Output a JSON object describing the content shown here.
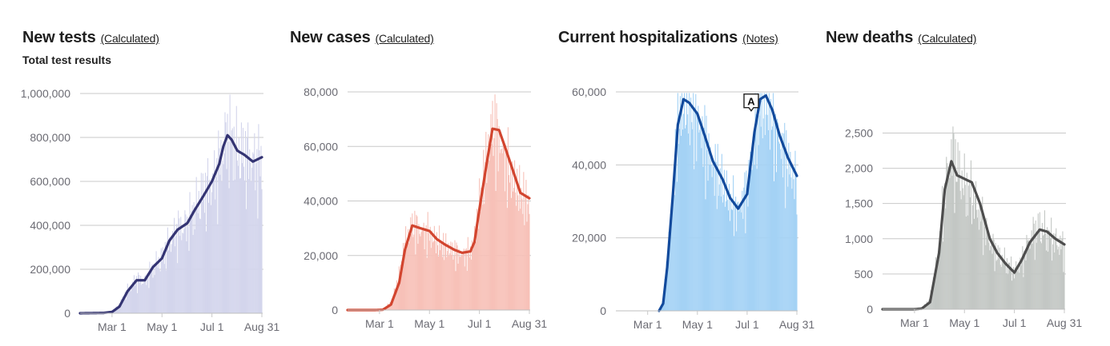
{
  "chart_data": [
    {
      "type": "bar",
      "title": "New tests",
      "title_link": "(Calculated)",
      "subtitle": "Total test results",
      "ylim": [
        0,
        1000000
      ],
      "yticks": [
        {
          "value": 0,
          "label": "0"
        },
        {
          "value": 200000,
          "label": "200,000"
        },
        {
          "value": 400000,
          "label": "400,000"
        },
        {
          "value": 600000,
          "label": "600,000"
        },
        {
          "value": 800000,
          "label": "800,000"
        },
        {
          "value": 1000000,
          "label": "1,000,000"
        }
      ],
      "xlim": [
        "2020-01-22",
        "2020-08-31"
      ],
      "xticks": [
        {
          "value": "2020-03-01",
          "label": "Mar 1"
        },
        {
          "value": "2020-05-01",
          "label": "May 1"
        },
        {
          "value": "2020-07-01",
          "label": "Jul 1"
        },
        {
          "value": "2020-08-31",
          "label": "Aug 31"
        }
      ],
      "grid": true,
      "colors": {
        "bars": "#d3d5ec",
        "line": "#343473"
      },
      "series": [
        {
          "kind": "daily-bars",
          "x": [
            "2020-01-22",
            "2020-02-20",
            "2020-03-01",
            "2020-03-10",
            "2020-03-20",
            "2020-03-31",
            "2020-04-10",
            "2020-04-20",
            "2020-05-01",
            "2020-05-10",
            "2020-05-20",
            "2020-06-01",
            "2020-06-10",
            "2020-06-20",
            "2020-07-01",
            "2020-07-10",
            "2020-07-15",
            "2020-07-20",
            "2020-07-25",
            "2020-08-01",
            "2020-08-10",
            "2020-08-20",
            "2020-08-31"
          ],
          "values": [
            0,
            2000,
            8000,
            40000,
            110000,
            160000,
            150000,
            215000,
            255000,
            340000,
            390000,
            420000,
            490000,
            560000,
            610000,
            700000,
            760000,
            860000,
            820000,
            760000,
            740000,
            720000,
            700000
          ]
        },
        {
          "kind": "7-day-average",
          "x": [
            "2020-01-22",
            "2020-02-20",
            "2020-03-01",
            "2020-03-10",
            "2020-03-20",
            "2020-03-31",
            "2020-04-10",
            "2020-04-20",
            "2020-05-01",
            "2020-05-10",
            "2020-05-20",
            "2020-06-01",
            "2020-06-10",
            "2020-06-20",
            "2020-07-01",
            "2020-07-10",
            "2020-07-15",
            "2020-07-20",
            "2020-07-25",
            "2020-08-01",
            "2020-08-10",
            "2020-08-20",
            "2020-08-31"
          ],
          "values": [
            0,
            1500,
            6000,
            30000,
            100000,
            150000,
            150000,
            210000,
            250000,
            330000,
            380000,
            410000,
            470000,
            530000,
            600000,
            680000,
            760000,
            810000,
            790000,
            740000,
            720000,
            690000,
            710000
          ]
        }
      ]
    },
    {
      "type": "bar",
      "title": "New cases",
      "title_link": "(Calculated)",
      "ylim": [
        0,
        80000
      ],
      "yticks": [
        {
          "value": 0,
          "label": "0"
        },
        {
          "value": 20000,
          "label": "20,000"
        },
        {
          "value": 40000,
          "label": "40,000"
        },
        {
          "value": 60000,
          "label": "60,000"
        },
        {
          "value": 80000,
          "label": "80,000"
        }
      ],
      "xlim": [
        "2020-01-22",
        "2020-08-31"
      ],
      "xticks": [
        {
          "value": "2020-03-01",
          "label": "Mar 1"
        },
        {
          "value": "2020-05-01",
          "label": "May 1"
        },
        {
          "value": "2020-07-01",
          "label": "Jul 1"
        },
        {
          "value": "2020-08-31",
          "label": "Aug 31"
        }
      ],
      "grid": true,
      "colors": {
        "bars": "#f7c1b8",
        "line": "#d2452f"
      },
      "series": [
        {
          "kind": "daily-bars",
          "x": [
            "2020-01-22",
            "2020-02-25",
            "2020-03-05",
            "2020-03-15",
            "2020-03-25",
            "2020-04-01",
            "2020-04-10",
            "2020-04-20",
            "2020-05-01",
            "2020-05-10",
            "2020-05-20",
            "2020-06-01",
            "2020-06-10",
            "2020-06-20",
            "2020-06-25",
            "2020-07-01",
            "2020-07-10",
            "2020-07-17",
            "2020-07-25",
            "2020-08-01",
            "2020-08-10",
            "2020-08-20",
            "2020-08-31"
          ],
          "values": [
            0,
            0,
            300,
            3000,
            13000,
            25000,
            32000,
            30000,
            29000,
            26000,
            24000,
            22000,
            21000,
            22000,
            27000,
            40000,
            58000,
            70000,
            64000,
            58000,
            50000,
            44000,
            40000
          ]
        },
        {
          "kind": "7-day-average",
          "x": [
            "2020-01-22",
            "2020-02-25",
            "2020-03-05",
            "2020-03-15",
            "2020-03-25",
            "2020-04-01",
            "2020-04-10",
            "2020-04-20",
            "2020-05-01",
            "2020-05-10",
            "2020-05-20",
            "2020-06-01",
            "2020-06-10",
            "2020-06-20",
            "2020-06-25",
            "2020-07-01",
            "2020-07-10",
            "2020-07-17",
            "2020-07-25",
            "2020-08-01",
            "2020-08-10",
            "2020-08-20",
            "2020-08-31"
          ],
          "values": [
            0,
            0,
            100,
            2000,
            10000,
            22000,
            31000,
            30000,
            29000,
            26000,
            24000,
            22000,
            21000,
            21500,
            25000,
            37000,
            54000,
            66500,
            66000,
            60000,
            52000,
            43000,
            41000
          ]
        }
      ]
    },
    {
      "type": "bar",
      "title": "Current hospitalizations",
      "title_link": "(Notes)",
      "ylim": [
        0,
        60000
      ],
      "yticks": [
        {
          "value": 0,
          "label": "0"
        },
        {
          "value": 20000,
          "label": "20,000"
        },
        {
          "value": 40000,
          "label": "40,000"
        },
        {
          "value": 60000,
          "label": "60,000"
        }
      ],
      "xlim": [
        "2020-01-22",
        "2020-08-31"
      ],
      "xticks": [
        {
          "value": "2020-03-01",
          "label": "Mar 1"
        },
        {
          "value": "2020-05-01",
          "label": "May 1"
        },
        {
          "value": "2020-07-01",
          "label": "Jul 1"
        },
        {
          "value": "2020-08-31",
          "label": "Aug 31"
        }
      ],
      "grid": true,
      "colors": {
        "bars": "#a4d2f5",
        "line": "#124a9c"
      },
      "annotation": {
        "label": "A",
        "x": "2020-07-06",
        "y": 57000
      },
      "series": [
        {
          "kind": "daily-bars",
          "x": [
            "2020-03-15",
            "2020-03-20",
            "2020-03-25",
            "2020-04-01",
            "2020-04-07",
            "2020-04-14",
            "2020-04-21",
            "2020-05-01",
            "2020-05-10",
            "2020-05-20",
            "2020-06-01",
            "2020-06-10",
            "2020-06-20",
            "2020-07-01",
            "2020-07-10",
            "2020-07-17",
            "2020-07-24",
            "2020-08-01",
            "2020-08-10",
            "2020-08-20",
            "2020-08-31"
          ],
          "values": [
            0,
            3000,
            14000,
            35000,
            53000,
            60000,
            57000,
            54000,
            48000,
            41000,
            36000,
            31000,
            28500,
            34000,
            50000,
            58500,
            59000,
            54000,
            48000,
            42000,
            36000
          ]
        },
        {
          "kind": "7-day-average",
          "x": [
            "2020-03-15",
            "2020-03-20",
            "2020-03-25",
            "2020-04-01",
            "2020-04-07",
            "2020-04-14",
            "2020-04-21",
            "2020-05-01",
            "2020-05-10",
            "2020-05-20",
            "2020-06-01",
            "2020-06-10",
            "2020-06-20",
            "2020-07-01",
            "2020-07-10",
            "2020-07-17",
            "2020-07-24",
            "2020-08-01",
            "2020-08-10",
            "2020-08-20",
            "2020-08-31"
          ],
          "values": [
            0,
            2000,
            12000,
            32000,
            51000,
            58000,
            57000,
            54000,
            48000,
            41000,
            36000,
            31000,
            28000,
            32000,
            49000,
            58000,
            59000,
            55000,
            48000,
            42000,
            37000
          ]
        }
      ]
    },
    {
      "type": "bar",
      "title": "New deaths",
      "title_link": "(Calculated)",
      "ylim": [
        0,
        2800
      ],
      "yticks": [
        {
          "value": 0,
          "label": "0"
        },
        {
          "value": 500,
          "label": "500"
        },
        {
          "value": 1000,
          "label": "1,000"
        },
        {
          "value": 1500,
          "label": "1,500"
        },
        {
          "value": 2000,
          "label": "2,000"
        },
        {
          "value": 2500,
          "label": "2,500"
        }
      ],
      "xlim": [
        "2020-01-22",
        "2020-08-31"
      ],
      "xticks": [
        {
          "value": "2020-03-01",
          "label": "Mar 1"
        },
        {
          "value": "2020-05-01",
          "label": "May 1"
        },
        {
          "value": "2020-07-01",
          "label": "Jul 1"
        },
        {
          "value": "2020-08-31",
          "label": "Aug 31"
        }
      ],
      "grid": true,
      "colors": {
        "bars": "#c3c7c4",
        "line": "#4d4d4d"
      },
      "series": [
        {
          "kind": "daily-bars",
          "x": [
            "2020-01-22",
            "2020-03-01",
            "2020-03-10",
            "2020-03-20",
            "2020-03-31",
            "2020-04-07",
            "2020-04-15",
            "2020-04-22",
            "2020-05-01",
            "2020-05-10",
            "2020-05-20",
            "2020-06-01",
            "2020-06-10",
            "2020-06-20",
            "2020-07-01",
            "2020-07-10",
            "2020-07-20",
            "2020-08-01",
            "2020-08-10",
            "2020-08-20",
            "2020-08-31"
          ],
          "values": [
            0,
            0,
            20,
            150,
            900,
            1800,
            2300,
            2100,
            1800,
            1700,
            1400,
            1000,
            800,
            700,
            550,
            700,
            1050,
            1200,
            1100,
            1000,
            900
          ]
        },
        {
          "kind": "7-day-average",
          "x": [
            "2020-01-22",
            "2020-03-01",
            "2020-03-10",
            "2020-03-20",
            "2020-03-31",
            "2020-04-07",
            "2020-04-15",
            "2020-04-22",
            "2020-05-01",
            "2020-05-10",
            "2020-05-20",
            "2020-06-01",
            "2020-06-10",
            "2020-06-20",
            "2020-07-01",
            "2020-07-10",
            "2020-07-20",
            "2020-08-01",
            "2020-08-10",
            "2020-08-20",
            "2020-08-31"
          ],
          "values": [
            0,
            0,
            10,
            100,
            800,
            1700,
            2100,
            1900,
            1850,
            1800,
            1500,
            1000,
            800,
            650,
            520,
            700,
            950,
            1130,
            1100,
            1000,
            920
          ]
        }
      ]
    }
  ]
}
